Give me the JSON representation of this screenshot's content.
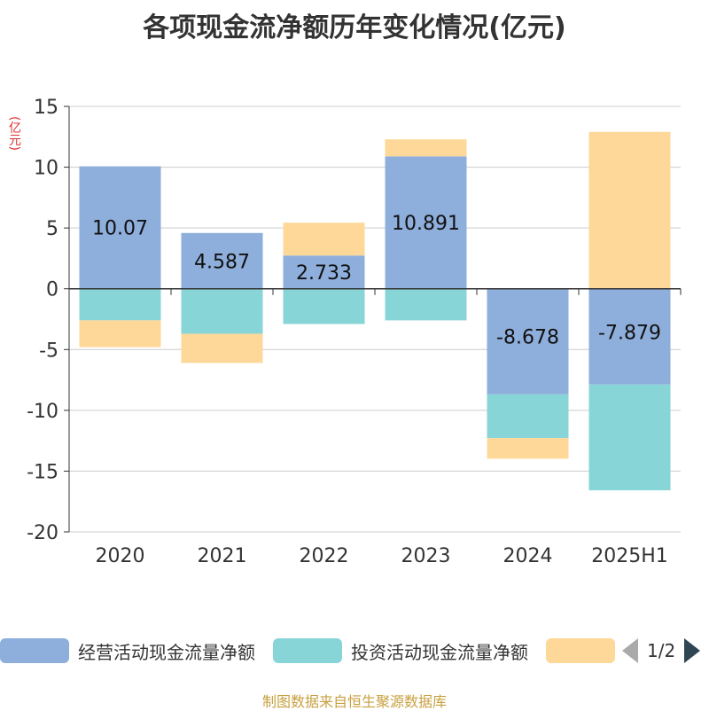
{
  "page": {
    "title": "各项现金流净额历年变化情况(亿元)",
    "source": "制图数据来自恒生聚源数据库"
  },
  "chart_data": {
    "type": "bar",
    "stacked": true,
    "title": "各项现金流净额历年变化情况(亿元)",
    "unit_label": "(亿元)",
    "categories": [
      "2020",
      "2021",
      "2022",
      "2023",
      "2024",
      "2025H1"
    ],
    "ylim": [
      -20,
      15
    ],
    "yticks": [
      15,
      10,
      5,
      0,
      -5,
      -10,
      -15,
      -20
    ],
    "grid": true,
    "legend_position": "bottom",
    "series": [
      {
        "name": "经营活动现金流量净额",
        "color": "#8eaedb",
        "values": [
          10.07,
          4.587,
          2.733,
          10.891,
          -8.678,
          -7.879
        ],
        "labels": [
          "10.07",
          "4.587",
          "2.733",
          "10.891",
          "-8.678",
          "-7.879"
        ]
      },
      {
        "name": "投资活动现金流量净额",
        "color": "#88d5d7",
        "values": [
          -2.6,
          -3.7,
          -2.9,
          -2.6,
          -3.6,
          -8.7
        ]
      },
      {
        "name": "",
        "color": "#fdd898",
        "values": [
          -2.2,
          -2.4,
          2.7,
          1.4,
          -1.7,
          12.9
        ]
      }
    ]
  },
  "legend": {
    "items": [
      {
        "label": "经营活动现金流量净额",
        "color": "#8eaedb"
      },
      {
        "label": "投资活动现金流量净额",
        "color": "#88d5d7"
      },
      {
        "label": "",
        "color": "#fdd898"
      }
    ],
    "page_indicator": "1/2"
  }
}
